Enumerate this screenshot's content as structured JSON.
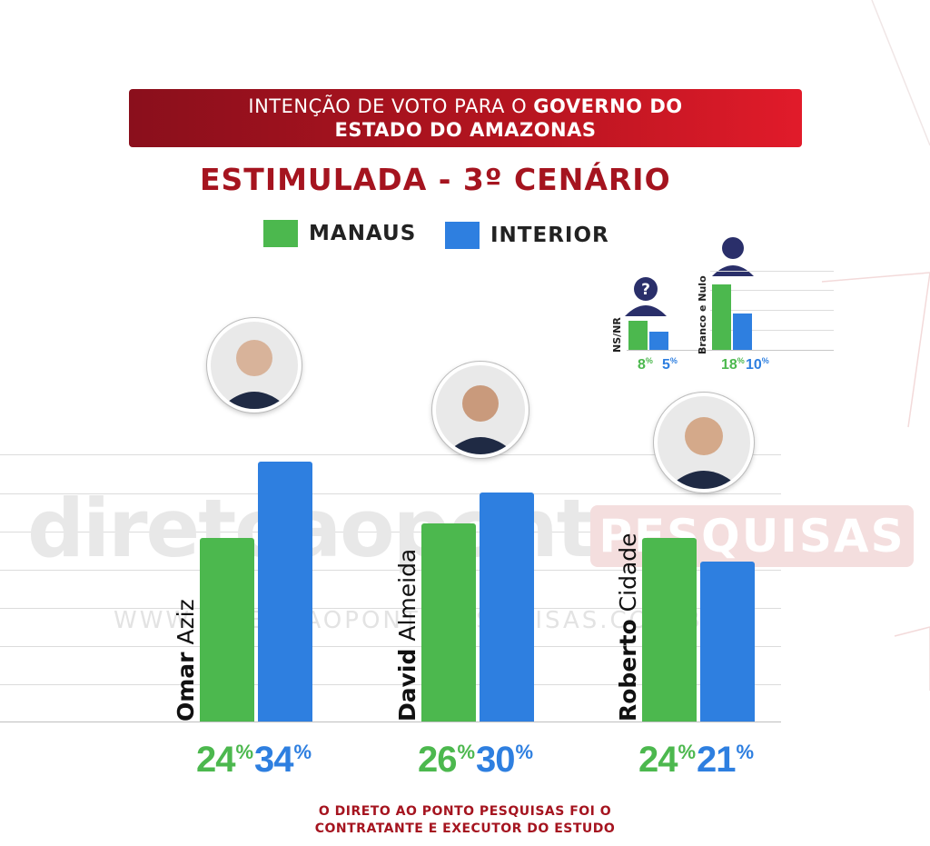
{
  "header": {
    "title_prefix": "INTENÇÃO DE VOTO PARA O ",
    "title_bold": "GOVERNO DO",
    "title_line2": "ESTADO DO AMAZONAS"
  },
  "subtitle": "ESTIMULADA - 3º CENÁRIO",
  "legend": [
    {
      "label": "MANAUS",
      "color": "#4cb84e"
    },
    {
      "label": "INTERIOR",
      "color": "#2e7fe0"
    }
  ],
  "colors": {
    "manaus": "#4cb84e",
    "interior": "#2e7fe0",
    "accent": "#a5141f"
  },
  "watermark": {
    "brand": "diretoaoponto",
    "pesquisas": "PESQUISAS",
    "url": "WWW.DIRETOAOPONTOPESQUISAS.COM.BR"
  },
  "chart_data": {
    "type": "bar",
    "categories": [
      "Omar Aziz",
      "David Almeida",
      "Roberto Cidade"
    ],
    "category_first": [
      "Omar",
      "David",
      "Roberto"
    ],
    "category_last": [
      "Aziz",
      "Almeida",
      "Cidade"
    ],
    "series": [
      {
        "name": "MANAUS",
        "values": [
          24,
          26,
          24
        ]
      },
      {
        "name": "INTERIOR",
        "values": [
          34,
          30,
          21
        ]
      }
    ],
    "ylim": [
      0,
      35
    ],
    "unit": "%",
    "title": "ESTIMULADA - 3º CENÁRIO",
    "legend_position": "top"
  },
  "mini_chart_data": {
    "type": "bar",
    "categories": [
      "NS/NR",
      "Branco e Nulo"
    ],
    "series": [
      {
        "name": "MANAUS",
        "values": [
          8,
          18
        ]
      },
      {
        "name": "INTERIOR",
        "values": [
          5,
          10
        ]
      }
    ],
    "unit": "%"
  },
  "footer": {
    "line1": "O DIRETO AO PONTO PESQUISAS FOI O",
    "line2": "CONTRATANTE E EXECUTOR DO ESTUDO"
  }
}
